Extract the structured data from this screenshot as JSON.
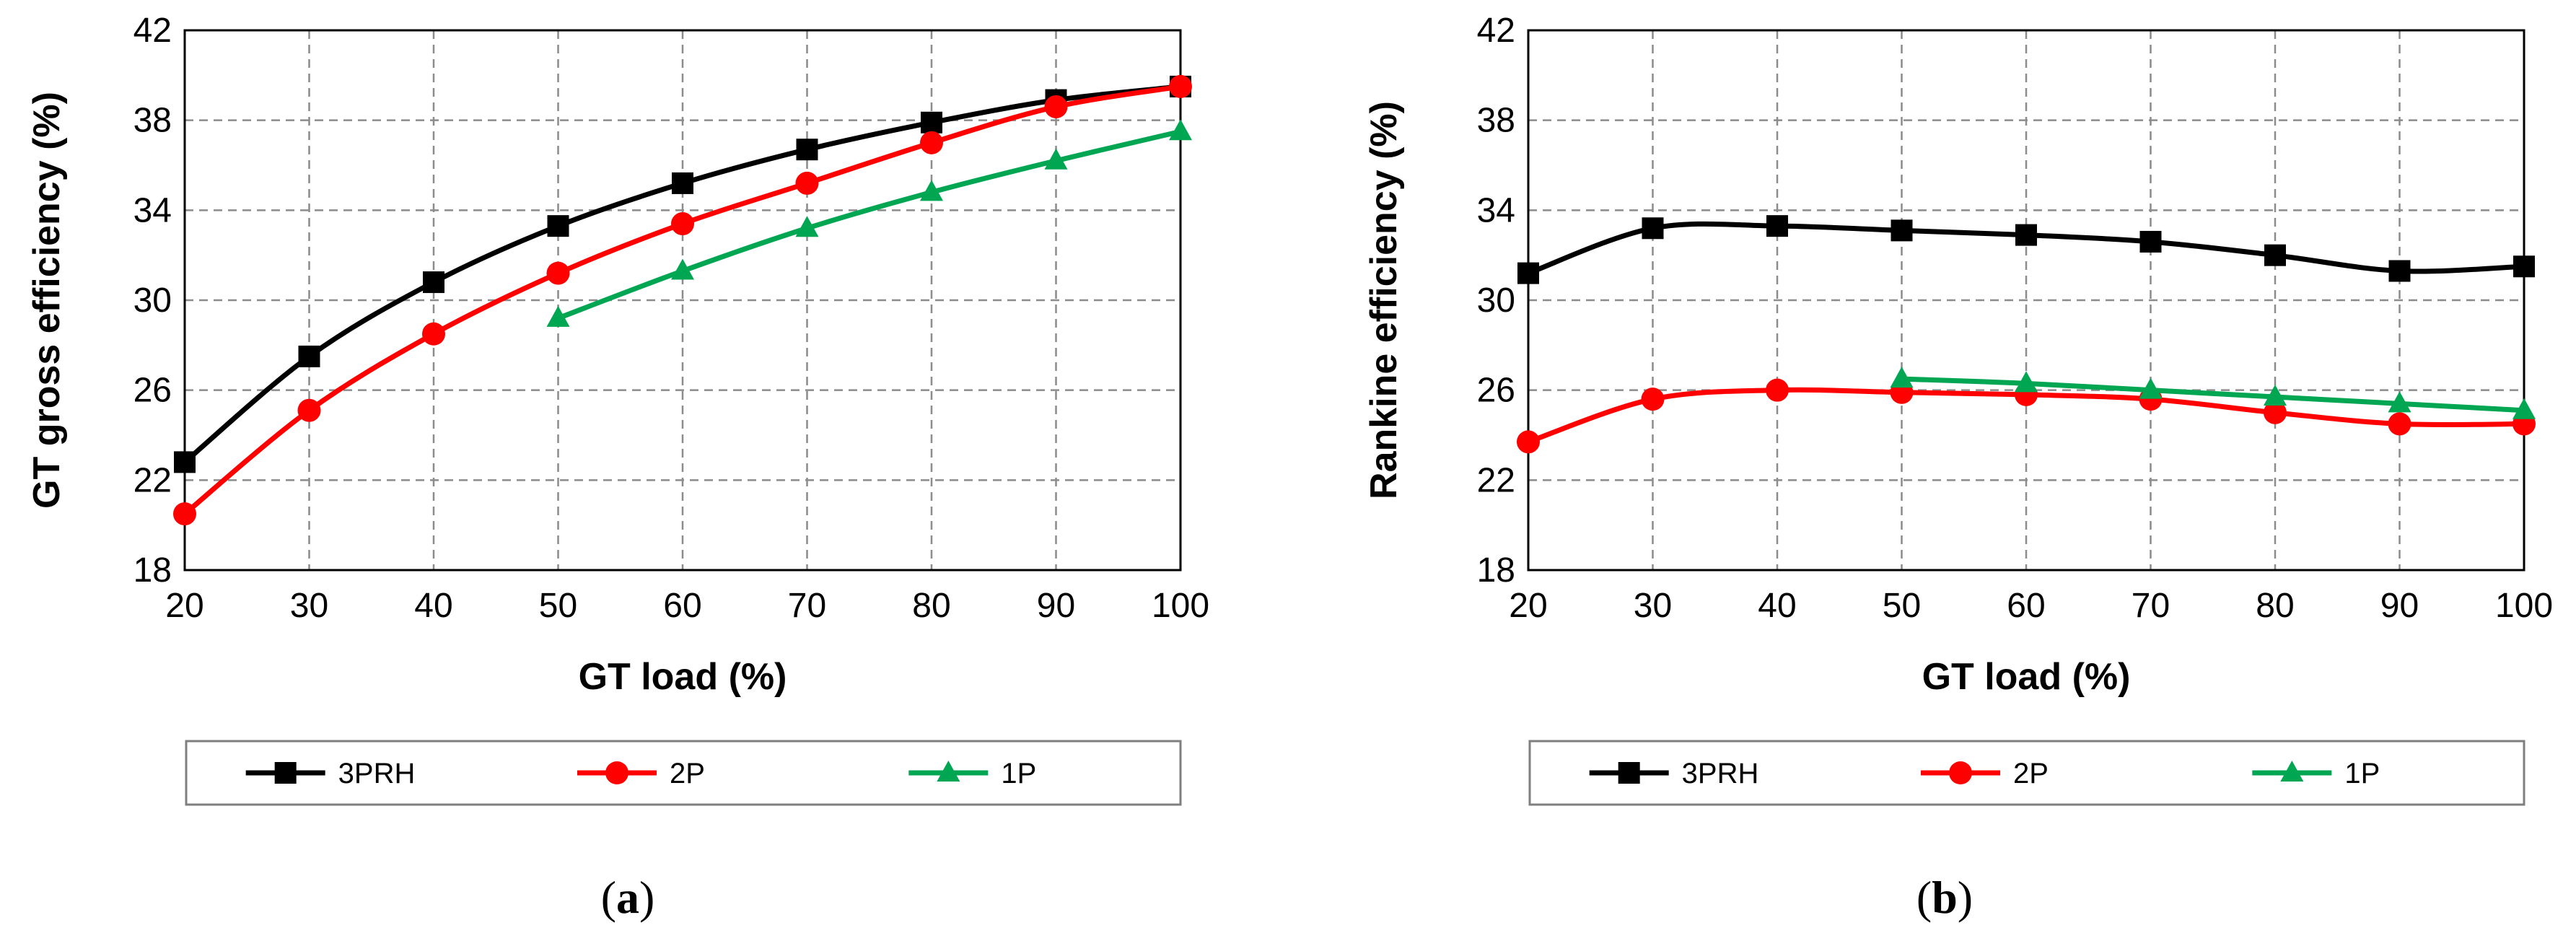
{
  "chart_data": [
    {
      "type": "line",
      "caption": "a",
      "xlabel": "GT load (%)",
      "ylabel": "GT gross efficiency (%)",
      "xlim": [
        20,
        100
      ],
      "ylim": [
        18,
        42
      ],
      "x_ticks": [
        "20",
        "30",
        "40",
        "50",
        "60",
        "70",
        "80",
        "90",
        "100"
      ],
      "y_ticks": [
        "18",
        "22",
        "26",
        "30",
        "34",
        "38",
        "42"
      ],
      "grid": true,
      "legend_position": "bottom",
      "series": [
        {
          "name": "3PRH",
          "color": "#000000",
          "marker": "square",
          "x": [
            20,
            30,
            40,
            50,
            60,
            70,
            80,
            90,
            100
          ],
          "values": [
            22.8,
            27.5,
            30.8,
            33.3,
            35.2,
            36.7,
            37.9,
            38.9,
            39.5
          ]
        },
        {
          "name": "2P",
          "color": "#ff0000",
          "marker": "circle",
          "x": [
            20,
            30,
            40,
            50,
            60,
            70,
            80,
            90,
            100
          ],
          "values": [
            20.5,
            25.1,
            28.5,
            31.2,
            33.4,
            35.2,
            37.0,
            38.6,
            39.5
          ]
        },
        {
          "name": "1P",
          "color": "#00a651",
          "marker": "triangle",
          "x": [
            50,
            60,
            70,
            80,
            90,
            100
          ],
          "values": [
            29.2,
            31.3,
            33.2,
            34.8,
            36.2,
            37.5
          ]
        }
      ]
    },
    {
      "type": "line",
      "caption": "b",
      "xlabel": "GT load (%)",
      "ylabel": "Rankine efficiency (%)",
      "xlim": [
        20,
        100
      ],
      "ylim": [
        18,
        42
      ],
      "x_ticks": [
        "20",
        "30",
        "40",
        "50",
        "60",
        "70",
        "80",
        "90",
        "100"
      ],
      "y_ticks": [
        "18",
        "22",
        "26",
        "30",
        "34",
        "38",
        "42"
      ],
      "grid": true,
      "legend_position": "bottom",
      "series": [
        {
          "name": "3PRH",
          "color": "#000000",
          "marker": "square",
          "x": [
            20,
            30,
            40,
            50,
            60,
            70,
            80,
            90,
            100
          ],
          "values": [
            31.2,
            33.2,
            33.3,
            33.1,
            32.9,
            32.6,
            32.0,
            31.3,
            31.5
          ]
        },
        {
          "name": "2P",
          "color": "#ff0000",
          "marker": "circle",
          "x": [
            20,
            30,
            40,
            50,
            60,
            70,
            80,
            90,
            100
          ],
          "values": [
            23.7,
            25.6,
            26.0,
            25.9,
            25.8,
            25.6,
            25.0,
            24.5,
            24.5
          ]
        },
        {
          "name": "1P",
          "color": "#00a651",
          "marker": "triangle",
          "x": [
            50,
            60,
            70,
            80,
            90,
            100
          ],
          "values": [
            26.5,
            26.3,
            26.0,
            25.7,
            25.4,
            25.1
          ]
        }
      ]
    }
  ]
}
